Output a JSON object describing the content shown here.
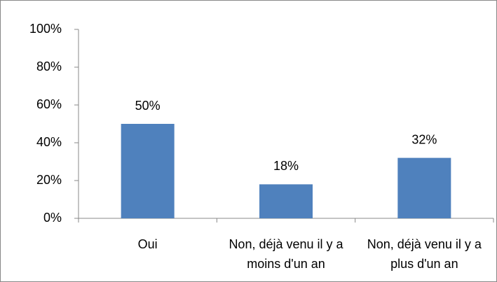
{
  "chart_data": {
    "type": "bar",
    "categories": [
      "Oui",
      "Non, déjà venu il y a moins d'un an",
      "Non, déjà venu il y a plus d'un an"
    ],
    "values": [
      50,
      18,
      32
    ],
    "value_labels": [
      "50%",
      "18%",
      "32%"
    ],
    "color": "#4f81bd",
    "ylim": [
      0,
      100
    ],
    "yticks": [
      {
        "value": 0,
        "label": "0%"
      },
      {
        "value": 20,
        "label": "20%"
      },
      {
        "value": 40,
        "label": "40%"
      },
      {
        "value": 60,
        "label": "60%"
      },
      {
        "value": 80,
        "label": "80%"
      },
      {
        "value": 100,
        "label": "100%"
      }
    ],
    "grid": false
  }
}
